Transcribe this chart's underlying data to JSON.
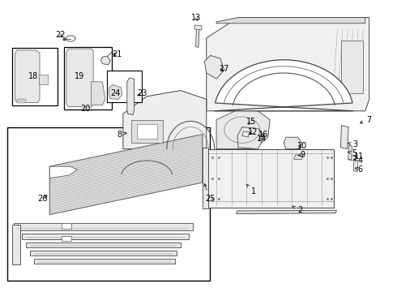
{
  "bg_color": "#ffffff",
  "lc": "#333333",
  "figsize": [
    4.9,
    3.6
  ],
  "dpi": 100,
  "lfs": 7.0,
  "labels": {
    "1": [
      0.638,
      0.345,
      0.62,
      0.37,
      true
    ],
    "2": [
      0.755,
      0.28,
      0.735,
      0.295,
      true
    ],
    "3": [
      0.895,
      0.505,
      0.875,
      0.51,
      true
    ],
    "4": [
      0.907,
      0.45,
      0.89,
      0.455,
      true
    ],
    "5": [
      0.893,
      0.475,
      0.875,
      0.48,
      true
    ],
    "6": [
      0.907,
      0.42,
      0.893,
      0.425,
      true
    ],
    "7": [
      0.93,
      0.59,
      0.9,
      0.575,
      true
    ],
    "8": [
      0.3,
      0.54,
      0.32,
      0.545,
      true
    ],
    "9": [
      0.762,
      0.47,
      0.75,
      0.467,
      true
    ],
    "10": [
      0.762,
      0.5,
      0.745,
      0.5,
      true
    ],
    "11": [
      0.905,
      0.465,
      0.887,
      0.462,
      true
    ],
    "12": [
      0.637,
      0.548,
      0.622,
      0.54,
      true
    ],
    "13": [
      0.495,
      0.94,
      0.498,
      0.92,
      true
    ],
    "14": [
      0.66,
      0.525,
      0.645,
      0.515,
      true
    ],
    "15": [
      0.632,
      0.582,
      0.625,
      0.573,
      true
    ],
    "16": [
      0.663,
      0.54,
      0.65,
      0.532,
      true
    ],
    "17": [
      0.565,
      0.765,
      0.548,
      0.758,
      true
    ],
    "18": [
      0.083,
      0.74,
      0.095,
      0.72,
      false
    ],
    "19": [
      0.2,
      0.74,
      0.21,
      0.72,
      false
    ],
    "20": [
      0.215,
      0.628,
      0.215,
      0.64,
      false
    ],
    "21": [
      0.295,
      0.815,
      0.278,
      0.81,
      true
    ],
    "22": [
      0.152,
      0.88,
      0.162,
      0.868,
      true
    ],
    "23": [
      0.358,
      0.68,
      0.34,
      0.668,
      true
    ],
    "24": [
      0.29,
      0.68,
      0.285,
      0.693,
      false
    ],
    "25": [
      0.53,
      0.32,
      0.512,
      0.38,
      true
    ],
    "26": [
      0.108,
      0.32,
      0.125,
      0.335,
      true
    ]
  }
}
